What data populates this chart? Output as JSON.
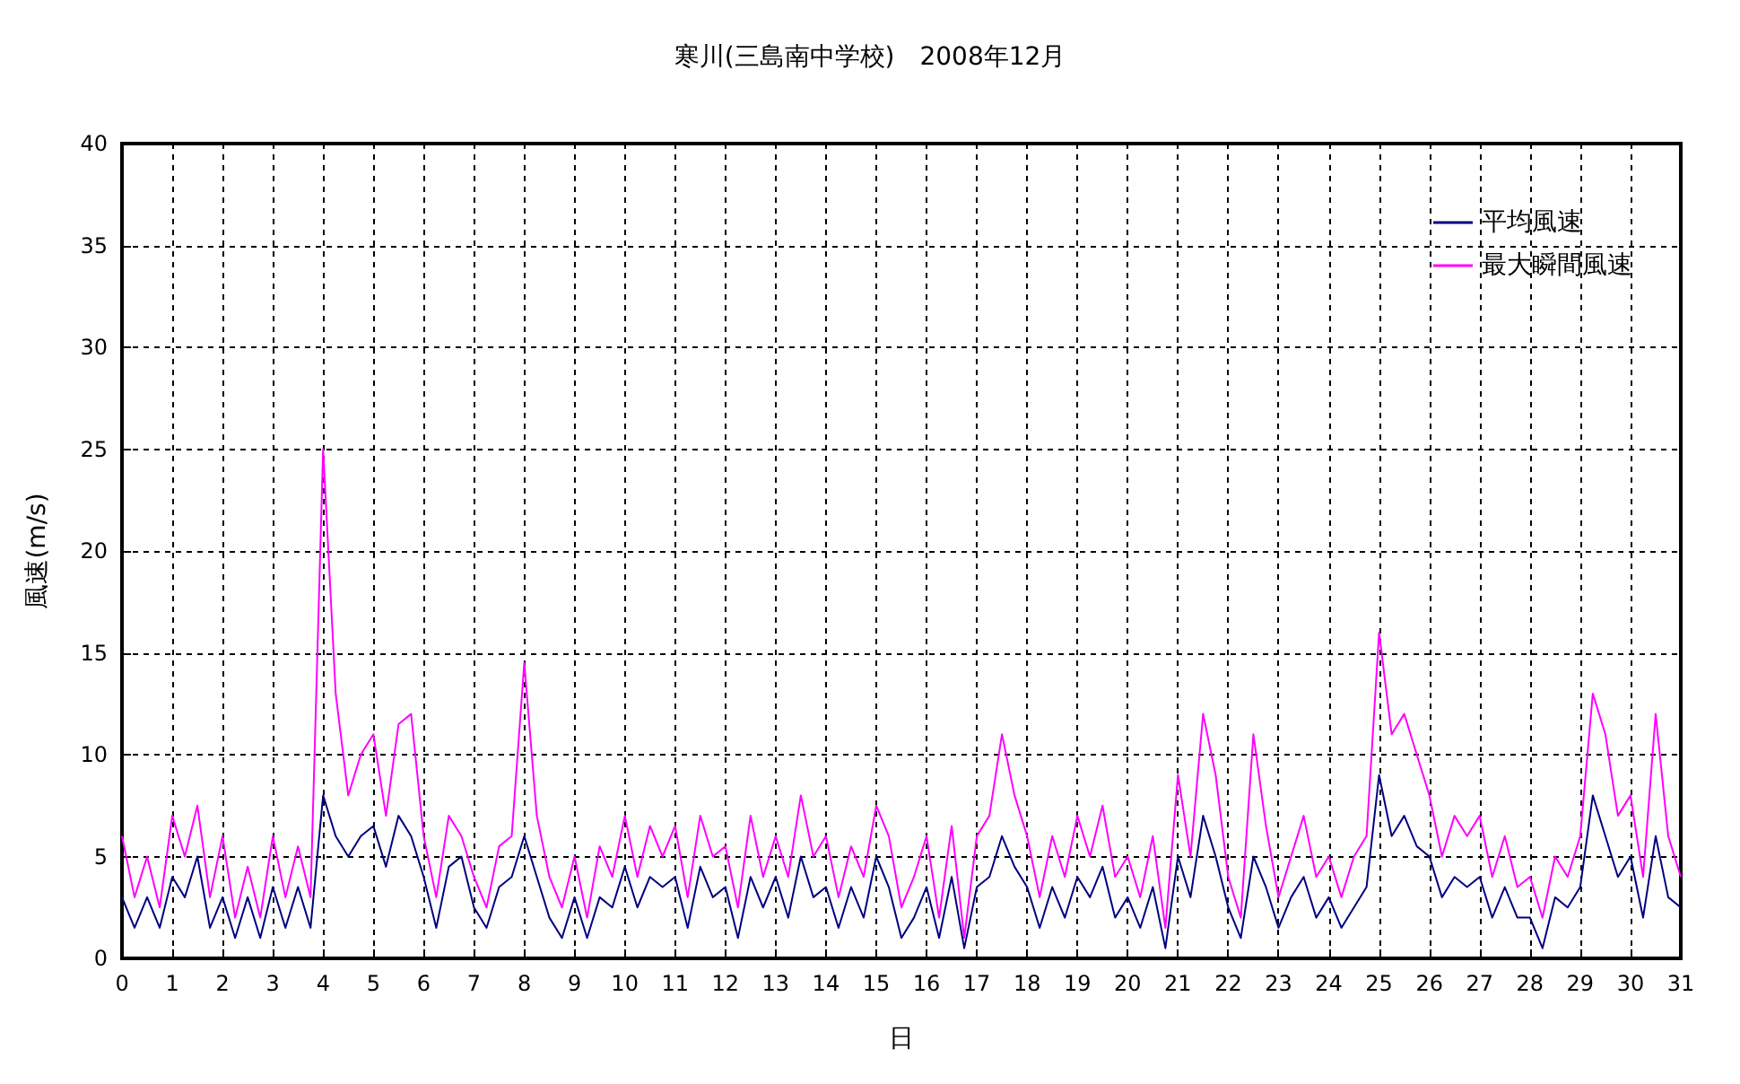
{
  "chart_data": {
    "type": "line",
    "title": "寒川(三島南中学校)　2008年12月",
    "xlabel": "日",
    "ylabel": "風速(m/s)",
    "x": [
      0,
      0.25,
      0.5,
      0.75,
      1,
      1.25,
      1.5,
      1.75,
      2,
      2.25,
      2.5,
      2.75,
      3,
      3.25,
      3.5,
      3.75,
      4,
      4.25,
      4.5,
      4.75,
      5,
      5.25,
      5.5,
      5.75,
      6,
      6.25,
      6.5,
      6.75,
      7,
      7.25,
      7.5,
      7.75,
      8,
      8.25,
      8.5,
      8.75,
      9,
      9.25,
      9.5,
      9.75,
      10,
      10.25,
      10.5,
      10.75,
      11,
      11.25,
      11.5,
      11.75,
      12,
      12.25,
      12.5,
      12.75,
      13,
      13.25,
      13.5,
      13.75,
      14,
      14.25,
      14.5,
      14.75,
      15,
      15.25,
      15.5,
      15.75,
      16,
      16.25,
      16.5,
      16.75,
      17,
      17.25,
      17.5,
      17.75,
      18,
      18.25,
      18.5,
      18.75,
      19,
      19.25,
      19.5,
      19.75,
      20,
      20.25,
      20.5,
      20.75,
      21,
      21.25,
      21.5,
      21.75,
      22,
      22.25,
      22.5,
      22.75,
      23,
      23.25,
      23.5,
      23.75,
      24,
      24.25,
      24.5,
      24.75,
      25,
      25.25,
      25.5,
      25.75,
      26,
      26.25,
      26.5,
      26.75,
      27,
      27.25,
      27.5,
      27.75,
      28,
      28.25,
      28.5,
      28.75,
      29,
      29.25,
      29.5,
      29.75,
      30,
      30.25,
      30.5,
      30.75,
      31
    ],
    "series": [
      {
        "name": "平均風速",
        "color": "#000080",
        "values": [
          3,
          1.5,
          3,
          1.5,
          4,
          3,
          5,
          1.5,
          3,
          1,
          3,
          1,
          3.5,
          1.5,
          3.5,
          1.5,
          8,
          6,
          5,
          6,
          6.5,
          4.5,
          7,
          6,
          4,
          1.5,
          4.5,
          5,
          2.5,
          1.5,
          3.5,
          4,
          6,
          4,
          2,
          1,
          3,
          1,
          3,
          2.5,
          4.5,
          2.5,
          4,
          3.5,
          4,
          1.5,
          4.5,
          3,
          3.5,
          1,
          4,
          2.5,
          4,
          2,
          5,
          3,
          3.5,
          1.5,
          3.5,
          2,
          5,
          3.5,
          1,
          2,
          3.5,
          1,
          4,
          0.5,
          3.5,
          4,
          6,
          4.5,
          3.5,
          1.5,
          3.5,
          2,
          4,
          3,
          4.5,
          2,
          3,
          1.5,
          3.5,
          0.5,
          5,
          3,
          7,
          5,
          2.5,
          1,
          5,
          3.5,
          1.5,
          3,
          4,
          2,
          3,
          1.5,
          2.5,
          3.5,
          9,
          6,
          7,
          5.5,
          5,
          3,
          4,
          3.5,
          4,
          2,
          3.5,
          2,
          2,
          0.5,
          3,
          2.5,
          3.5,
          8,
          6,
          4,
          5,
          2,
          6,
          3,
          2.5
        ]
      },
      {
        "name": "最大瞬間風速",
        "color": "#ff00ff",
        "values": [
          6,
          3,
          5,
          2.5,
          7,
          5,
          7.5,
          3,
          6,
          2,
          4.5,
          2,
          6,
          3,
          5.5,
          3,
          25,
          13,
          8,
          10,
          11,
          7,
          11.5,
          12,
          6,
          3,
          7,
          6,
          4,
          2.5,
          5.5,
          6,
          14.5,
          7,
          4,
          2.5,
          5,
          2,
          5.5,
          4,
          7,
          4,
          6.5,
          5,
          6.5,
          3,
          7,
          5,
          5.5,
          2.5,
          7,
          4,
          6,
          4,
          8,
          5,
          6,
          3,
          5.5,
          4,
          7.5,
          6,
          2.5,
          4,
          6,
          2,
          6.5,
          1,
          6,
          7,
          11,
          8,
          6,
          3,
          6,
          4,
          7,
          5,
          7.5,
          4,
          5,
          3,
          6,
          1.5,
          9,
          5,
          12,
          9,
          4,
          2,
          11,
          6.5,
          3,
          5,
          7,
          4,
          5,
          3,
          5,
          6,
          16,
          11,
          12,
          10,
          8,
          5,
          7,
          6,
          7,
          4,
          6,
          3.5,
          4,
          2,
          5,
          4,
          6,
          13,
          11,
          7,
          8,
          4,
          12,
          6,
          4
        ]
      }
    ],
    "xlim": [
      0,
      31
    ],
    "xticks": [
      0,
      1,
      2,
      3,
      4,
      5,
      6,
      7,
      8,
      9,
      10,
      11,
      12,
      13,
      14,
      15,
      16,
      17,
      18,
      19,
      20,
      21,
      22,
      23,
      24,
      25,
      26,
      27,
      28,
      29,
      30,
      31
    ],
    "ylim": [
      0,
      40
    ],
    "yticks": [
      0,
      5,
      10,
      15,
      20,
      25,
      30,
      35,
      40
    ],
    "grid": true,
    "legend": "top right",
    "marker": "none",
    "line_style": "solid"
  }
}
